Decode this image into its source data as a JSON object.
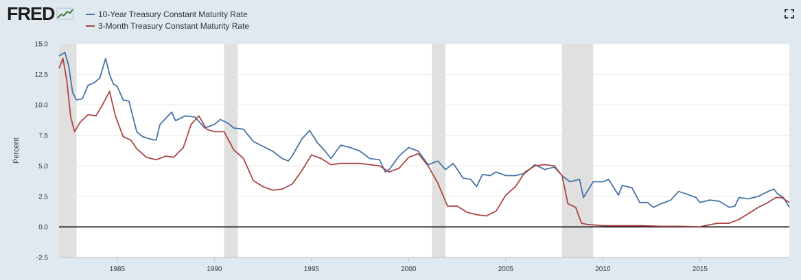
{
  "header": {
    "logo_text": "FRED",
    "fullscreen_icon": "fullscreen-icon",
    "logo_icon": "trend-graph-icon"
  },
  "colors": {
    "background": "#e1e9f0",
    "plot_background": "#ffffff",
    "recession": "#e0e0e0",
    "zero_line": "#000000",
    "series_10y": "#4572a7",
    "series_3m": "#aa4643"
  },
  "chart_data": {
    "type": "line",
    "title": "",
    "xlabel": "",
    "ylabel": "Percent",
    "xlim": [
      1982.0,
      2019.6
    ],
    "ylim": [
      -2.5,
      15.0
    ],
    "x_ticks": [
      1985,
      1990,
      1995,
      2000,
      2005,
      2010,
      2015
    ],
    "y_ticks": [
      "-2.5",
      "0.0",
      "2.5",
      "5.0",
      "7.5",
      "10.0",
      "12.5",
      "15.0"
    ],
    "grid": "horizontal",
    "legend": "top-left",
    "recessions": [
      [
        1982.0,
        1982.9
      ],
      [
        1990.5,
        1991.2
      ],
      [
        2001.2,
        2001.9
      ],
      [
        2007.9,
        2009.5
      ]
    ],
    "series": [
      {
        "name": "10-Year Treasury Constant Maturity Rate",
        "color": "#4572a7",
        "x": [
          1982.0,
          1982.3,
          1982.5,
          1982.7,
          1982.9,
          1983.2,
          1983.5,
          1983.8,
          1984.1,
          1984.4,
          1984.6,
          1984.8,
          1985.0,
          1985.3,
          1985.6,
          1986.0,
          1986.3,
          1986.7,
          1987.0,
          1987.2,
          1987.5,
          1987.8,
          1988.0,
          1988.5,
          1989.0,
          1989.5,
          1990.0,
          1990.3,
          1990.7,
          1991.0,
          1991.5,
          1992.0,
          1992.5,
          1993.0,
          1993.5,
          1993.8,
          1994.0,
          1994.5,
          1994.9,
          1995.3,
          1995.7,
          1996.0,
          1996.5,
          1997.0,
          1997.5,
          1998.0,
          1998.5,
          1998.8,
          1999.0,
          1999.5,
          2000.0,
          2000.5,
          2001.0,
          2001.5,
          2001.9,
          2002.3,
          2002.8,
          2003.2,
          2003.5,
          2003.8,
          2004.2,
          2004.5,
          2005.0,
          2005.5,
          2006.0,
          2006.5,
          2007.0,
          2007.5,
          2007.9,
          2008.3,
          2008.8,
          2009.0,
          2009.5,
          2010.0,
          2010.3,
          2010.8,
          2011.0,
          2011.5,
          2011.9,
          2012.3,
          2012.6,
          2013.0,
          2013.5,
          2013.9,
          2014.3,
          2014.8,
          2015.0,
          2015.5,
          2016.0,
          2016.5,
          2016.8,
          2017.0,
          2017.5,
          2018.0,
          2018.5,
          2018.8,
          2019.0,
          2019.3,
          2019.6
        ],
        "values": [
          14.0,
          14.3,
          13.2,
          11.0,
          10.4,
          10.5,
          11.6,
          11.8,
          12.2,
          13.8,
          12.5,
          11.7,
          11.5,
          10.4,
          10.3,
          7.8,
          7.4,
          7.2,
          7.1,
          8.4,
          8.9,
          9.4,
          8.7,
          9.1,
          9.0,
          8.1,
          8.4,
          8.8,
          8.5,
          8.1,
          8.0,
          7.0,
          6.6,
          6.2,
          5.6,
          5.4,
          5.8,
          7.2,
          7.9,
          6.9,
          6.2,
          5.6,
          6.7,
          6.5,
          6.2,
          5.6,
          5.5,
          4.5,
          4.7,
          5.8,
          6.5,
          6.2,
          5.1,
          5.4,
          4.7,
          5.2,
          4.0,
          3.9,
          3.3,
          4.3,
          4.2,
          4.5,
          4.2,
          4.2,
          4.4,
          5.1,
          4.7,
          4.9,
          4.2,
          3.7,
          3.9,
          2.4,
          3.7,
          3.7,
          3.9,
          2.6,
          3.4,
          3.2,
          2.0,
          2.0,
          1.6,
          1.9,
          2.2,
          2.9,
          2.7,
          2.4,
          2.0,
          2.2,
          2.1,
          1.6,
          1.7,
          2.4,
          2.3,
          2.5,
          2.9,
          3.1,
          2.7,
          2.4,
          1.6
        ]
      },
      {
        "name": "3-Month Treasury Constant Maturity Rate",
        "color": "#aa4643",
        "x": [
          1982.0,
          1982.2,
          1982.4,
          1982.6,
          1982.8,
          1983.1,
          1983.5,
          1983.9,
          1984.2,
          1984.6,
          1984.9,
          1985.3,
          1985.7,
          1986.0,
          1986.5,
          1987.0,
          1987.5,
          1987.9,
          1988.4,
          1988.8,
          1989.2,
          1989.6,
          1990.0,
          1990.5,
          1991.0,
          1991.5,
          1992.0,
          1992.5,
          1993.0,
          1993.5,
          1994.0,
          1994.5,
          1995.0,
          1995.5,
          1996.0,
          1996.5,
          1997.0,
          1997.5,
          1998.0,
          1998.5,
          1999.0,
          1999.5,
          2000.0,
          2000.5,
          2001.0,
          2001.5,
          2002.0,
          2002.5,
          2003.0,
          2003.5,
          2004.0,
          2004.5,
          2005.0,
          2005.5,
          2006.0,
          2006.5,
          2007.0,
          2007.5,
          2007.9,
          2008.2,
          2008.6,
          2008.9,
          2009.2,
          2010.0,
          2011.0,
          2012.0,
          2013.0,
          2014.0,
          2015.0,
          2015.9,
          2016.5,
          2017.0,
          2017.5,
          2018.0,
          2018.5,
          2018.9,
          2019.2,
          2019.6
        ],
        "values": [
          13.0,
          13.8,
          12.0,
          9.0,
          7.8,
          8.6,
          9.2,
          9.1,
          9.9,
          11.1,
          9.1,
          7.4,
          7.1,
          6.4,
          5.7,
          5.5,
          5.8,
          5.7,
          6.5,
          8.4,
          9.1,
          8.0,
          7.8,
          7.8,
          6.3,
          5.6,
          3.8,
          3.3,
          3.0,
          3.1,
          3.5,
          4.6,
          5.9,
          5.6,
          5.1,
          5.2,
          5.2,
          5.2,
          5.1,
          5.0,
          4.5,
          4.8,
          5.7,
          6.0,
          5.0,
          3.6,
          1.7,
          1.7,
          1.2,
          1.0,
          0.9,
          1.3,
          2.6,
          3.3,
          4.5,
          5.0,
          5.1,
          5.0,
          4.2,
          1.9,
          1.6,
          0.3,
          0.2,
          0.1,
          0.1,
          0.1,
          0.05,
          0.05,
          0.02,
          0.3,
          0.3,
          0.6,
          1.1,
          1.6,
          2.0,
          2.4,
          2.4,
          2.0
        ]
      }
    ]
  }
}
